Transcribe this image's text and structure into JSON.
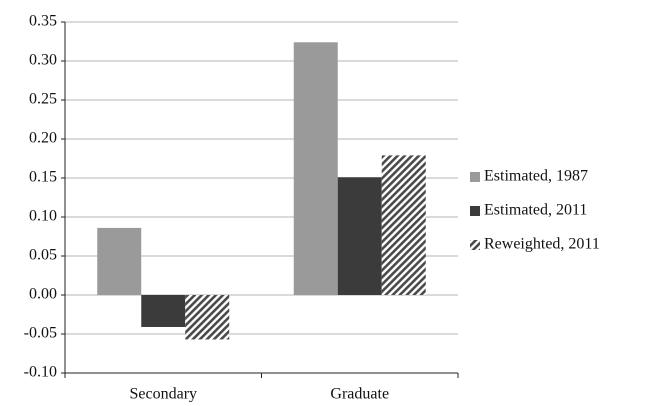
{
  "chart_data": {
    "type": "bar",
    "categories": [
      "Secondary",
      "Graduate"
    ],
    "series": [
      {
        "name": "Estimated, 1987",
        "color": "#9a9a9a",
        "values": [
          0.086,
          0.324
        ]
      },
      {
        "name": "Estimated, 2011",
        "color": "#3b3b3b",
        "values": [
          -0.041,
          0.151
        ]
      },
      {
        "name": "Reweighted, 2011",
        "color": "#4a4a4a",
        "pattern": "hatch",
        "values": [
          -0.057,
          0.179
        ]
      }
    ],
    "ylim": [
      -0.1,
      0.35
    ],
    "yticks": [
      {
        "value": -0.1,
        "label": "-0.10"
      },
      -0.05,
      {
        "value": 0,
        "label": "0.00"
      },
      0.05,
      {
        "value": 0.1,
        "label": "0.10"
      },
      0.15,
      {
        "value": 0.2,
        "label": "0.20"
      },
      0.25,
      {
        "value": 0.3,
        "label": "0.30"
      },
      0.35
    ],
    "grid": true,
    "legend": "right"
  }
}
